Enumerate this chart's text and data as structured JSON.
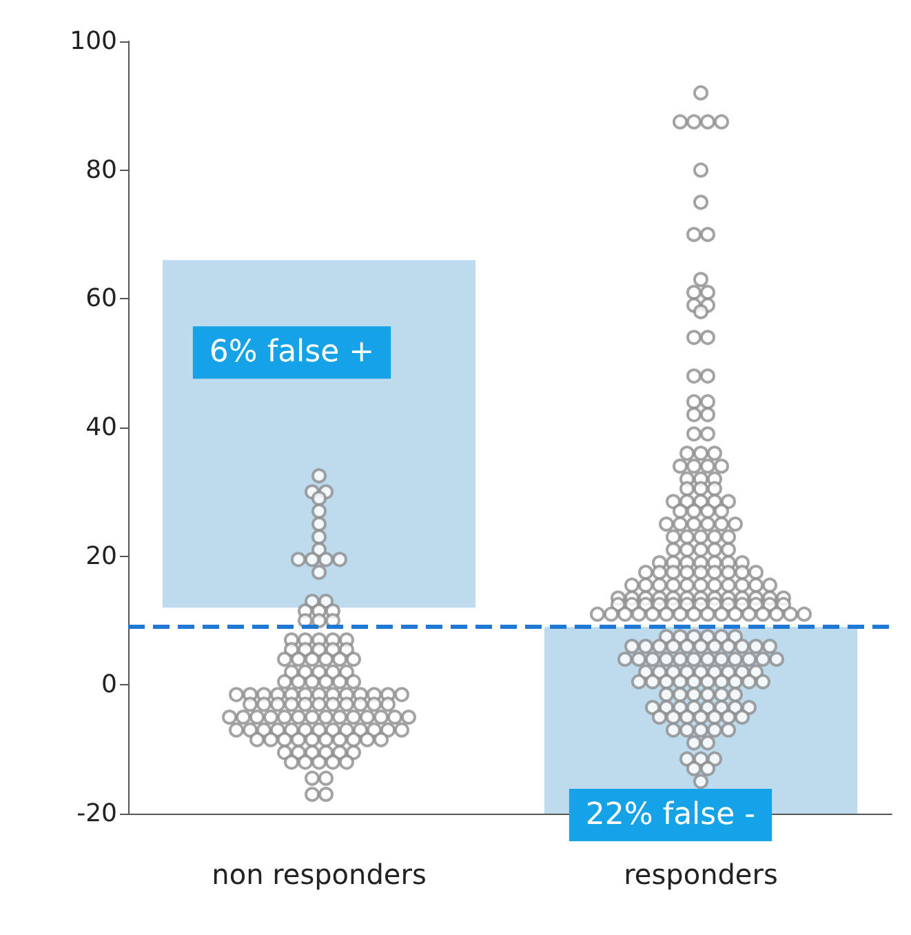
{
  "chart_data": {
    "type": "scatter",
    "categories": [
      "non responders",
      "responders"
    ],
    "marker": "circle",
    "grid": false,
    "ylim": [
      -20,
      100
    ],
    "yticks": [
      -20,
      0,
      20,
      40,
      60,
      80,
      100
    ],
    "series": [
      {
        "color": "#8c8c8c",
        "x": [
          "non responders",
          "non responders",
          "non responders",
          "non responders",
          "non responders",
          "non responders",
          "non responders",
          "non responders",
          "non responders",
          "non responders",
          "non responders",
          "non responders",
          "non responders",
          "non responders",
          "non responders",
          "non responders",
          "non responders",
          "non responders",
          "non responders",
          "non responders",
          "non responders",
          "non responders",
          "non responders",
          "non responders",
          "non responders",
          "non responders",
          "non responders",
          "non responders",
          "non responders",
          "non responders",
          "non responders",
          "non responders",
          "non responders",
          "non responders",
          "non responders",
          "non responders",
          "non responders",
          "non responders",
          "non responders",
          "non responders",
          "non responders",
          "non responders",
          "non responders",
          "non responders",
          "non responders",
          "non responders",
          "non responders",
          "non responders",
          "non responders",
          "non responders",
          "non responders",
          "non responders",
          "non responders",
          "non responders",
          "non responders",
          "non responders",
          "non responders",
          "non responders",
          "non responders",
          "non responders",
          "non responders",
          "non responders",
          "non responders",
          "non responders",
          "non responders",
          "non responders",
          "non responders",
          "non responders",
          "non responders",
          "non responders",
          "non responders",
          "non responders",
          "non responders",
          "non responders",
          "non responders",
          "non responders",
          "non responders",
          "non responders",
          "non responders",
          "non responders",
          "non responders",
          "non responders",
          "non responders",
          "non responders",
          "non responders",
          "non responders",
          "non responders",
          "non responders",
          "non responders",
          "non responders",
          "non responders",
          "non responders",
          "non responders",
          "non responders",
          "non responders",
          "non responders",
          "non responders",
          "non responders",
          "non responders",
          "non responders",
          "non responders",
          "non responders",
          "non responders",
          "non responders",
          "non responders",
          "non responders",
          "non responders",
          "non responders",
          "non responders",
          "non responders",
          "non responders",
          "non responders",
          "non responders",
          "non responders",
          "non responders",
          "non responders",
          "non responders",
          "non responders",
          "non responders",
          "non responders",
          "non responders",
          "non responders",
          "non responders",
          "non responders"
        ],
        "values": [
          32.5,
          30,
          30,
          29,
          27,
          25,
          23,
          21,
          19.5,
          19.5,
          19.5,
          19.5,
          17.5,
          13,
          13,
          11.5,
          11.5,
          11.5,
          10,
          10,
          10,
          7,
          7,
          7,
          7,
          7,
          5.5,
          5.5,
          5.5,
          5.5,
          5.5,
          4,
          4,
          4,
          4,
          4,
          4,
          2,
          2,
          2,
          2,
          2,
          0.5,
          0.5,
          0.5,
          0.5,
          0.5,
          0.5,
          -1.5,
          -1.5,
          -1.5,
          -1.5,
          -1.5,
          -1.5,
          -1.5,
          -1.5,
          -1.5,
          -1.5,
          -1.5,
          -1.5,
          -1.5,
          -3,
          -3,
          -3,
          -3,
          -3,
          -3,
          -3,
          -3,
          -3,
          -3,
          -3,
          -5,
          -5,
          -5,
          -5,
          -5,
          -5,
          -5,
          -5,
          -5,
          -5,
          -5,
          -5,
          -5,
          -5,
          -7,
          -7,
          -7,
          -7,
          -7,
          -7,
          -7,
          -7,
          -7,
          -7,
          -7,
          -7,
          -7,
          -8.5,
          -8.5,
          -8.5,
          -8.5,
          -8.5,
          -8.5,
          -8.5,
          -8.5,
          -8.5,
          -8.5,
          -10.5,
          -10.5,
          -10.5,
          -10.5,
          -10.5,
          -10.5,
          -12,
          -12,
          -12,
          -12,
          -12,
          -14.5,
          -14.5,
          -17,
          -17
        ]
      },
      {
        "color": "#8c8c8c",
        "x": [
          "responders",
          "responders",
          "responders",
          "responders",
          "responders",
          "responders",
          "responders",
          "responders",
          "responders",
          "responders",
          "responders",
          "responders",
          "responders",
          "responders",
          "responders",
          "responders",
          "responders",
          "responders",
          "responders",
          "responders",
          "responders",
          "responders",
          "responders",
          "responders",
          "responders",
          "responders",
          "responders",
          "responders",
          "responders",
          "responders",
          "responders",
          "responders",
          "responders",
          "responders",
          "responders",
          "responders",
          "responders",
          "responders",
          "responders",
          "responders",
          "responders",
          "responders",
          "responders",
          "responders",
          "responders",
          "responders",
          "responders",
          "responders",
          "responders",
          "responders",
          "responders",
          "responders",
          "responders",
          "responders",
          "responders",
          "responders",
          "responders",
          "responders",
          "responders",
          "responders",
          "responders",
          "responders",
          "responders",
          "responders",
          "responders",
          "responders",
          "responders",
          "responders",
          "responders",
          "responders",
          "responders",
          "responders",
          "responders",
          "responders",
          "responders",
          "responders",
          "responders",
          "responders",
          "responders",
          "responders",
          "responders",
          "responders",
          "responders",
          "responders",
          "responders",
          "responders",
          "responders",
          "responders",
          "responders",
          "responders",
          "responders",
          "responders",
          "responders",
          "responders",
          "responders",
          "responders",
          "responders",
          "responders",
          "responders",
          "responders",
          "responders",
          "responders",
          "responders",
          "responders",
          "responders",
          "responders",
          "responders",
          "responders",
          "responders",
          "responders",
          "responders",
          "responders",
          "responders",
          "responders",
          "responders",
          "responders",
          "responders",
          "responders",
          "responders",
          "responders",
          "responders",
          "responders",
          "responders",
          "responders",
          "responders",
          "responders",
          "responders",
          "responders",
          "responders",
          "responders",
          "responders",
          "responders",
          "responders",
          "responders",
          "responders",
          "responders",
          "responders",
          "responders",
          "responders",
          "responders",
          "responders",
          "responders",
          "responders",
          "responders",
          "responders",
          "responders",
          "responders",
          "responders",
          "responders",
          "responders",
          "responders",
          "responders",
          "responders",
          "responders",
          "responders",
          "responders",
          "responders",
          "responders",
          "responders",
          "responders",
          "responders",
          "responders",
          "responders",
          "responders",
          "responders",
          "responders",
          "responders",
          "responders",
          "responders",
          "responders",
          "responders",
          "responders",
          "responders",
          "responders",
          "responders",
          "responders",
          "responders",
          "responders",
          "responders",
          "responders",
          "responders",
          "responders",
          "responders",
          "responders",
          "responders",
          "responders",
          "responders",
          "responders",
          "responders",
          "responders",
          "responders",
          "responders",
          "responders",
          "responders",
          "responders",
          "responders",
          "responders",
          "responders",
          "responders",
          "responders",
          "responders",
          "responders",
          "responders",
          "responders",
          "responders",
          "responders",
          "responders",
          "responders",
          "responders",
          "responders",
          "responders",
          "responders",
          "responders",
          "responders"
        ],
        "values": [
          92,
          87.5,
          87.5,
          87.5,
          87.5,
          80,
          75,
          70,
          70,
          63,
          61,
          61,
          59,
          59,
          58,
          54,
          54,
          48,
          48,
          44,
          44,
          42,
          42,
          39,
          39,
          36,
          36,
          36,
          34,
          34,
          34,
          34,
          32,
          32,
          32,
          30.5,
          30.5,
          30.5,
          28.5,
          28.5,
          28.5,
          28.5,
          28.5,
          27,
          27,
          27,
          27,
          25,
          25,
          25,
          25,
          25,
          25,
          23,
          23,
          23,
          23,
          23,
          21,
          21,
          21,
          21,
          21,
          19,
          19,
          19,
          19,
          19,
          19,
          19,
          17.5,
          17.5,
          17.5,
          17.5,
          17.5,
          17.5,
          17.5,
          17.5,
          17.5,
          15.5,
          15.5,
          15.5,
          15.5,
          15.5,
          15.5,
          15.5,
          15.5,
          15.5,
          15.5,
          15.5,
          13.5,
          13.5,
          13.5,
          13.5,
          13.5,
          13.5,
          13.5,
          13.5,
          13.5,
          13.5,
          13.5,
          13.5,
          13.5,
          12.5,
          12.5,
          12.5,
          12.5,
          12.5,
          12.5,
          12.5,
          12.5,
          12.5,
          12.5,
          12.5,
          12.5,
          12.5,
          11,
          11,
          11,
          11,
          11,
          11,
          11,
          11,
          11,
          11,
          11,
          11,
          11,
          11,
          11,
          11,
          7.5,
          7.5,
          7.5,
          7.5,
          7.5,
          7.5,
          6,
          6,
          6,
          6,
          6,
          6,
          6,
          6,
          6,
          6,
          6,
          4,
          4,
          4,
          4,
          4,
          4,
          4,
          4,
          4,
          4,
          4,
          4,
          2,
          2,
          2,
          2,
          2,
          2,
          2,
          2,
          2,
          0.5,
          0.5,
          0.5,
          0.5,
          0.5,
          0.5,
          0.5,
          0.5,
          0.5,
          0.5,
          -1.5,
          -1.5,
          -1.5,
          -1.5,
          -1.5,
          -1.5,
          -3.5,
          -3.5,
          -3.5,
          -3.5,
          -3.5,
          -3.5,
          -3.5,
          -3.5,
          -5,
          -5,
          -5,
          -5,
          -5,
          -5,
          -5,
          -7,
          -7,
          -7,
          -7,
          -7,
          -9,
          -9,
          -11.5,
          -11.5,
          -11.5,
          -13,
          -13,
          -15
        ]
      }
    ],
    "ref_lines": [
      {
        "axis": "y",
        "value": 9,
        "color": "#1f78d4",
        "line_style": "dashed"
      }
    ],
    "bands": [
      {
        "axis": "y",
        "from": 12,
        "to": 66,
        "label": "6% false +",
        "color": "#b7d7ec"
      },
      {
        "axis": "y",
        "from": -20,
        "to": 9,
        "label": "22% false -",
        "color": "#b7d7ec"
      }
    ]
  }
}
